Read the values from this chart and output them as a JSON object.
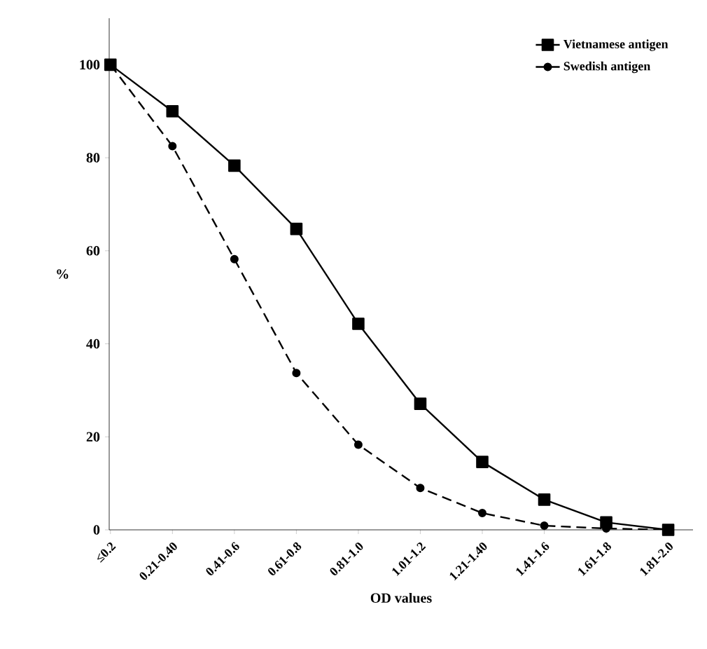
{
  "chart_data": {
    "type": "line",
    "xlabel": "OD values",
    "ylabel": "%",
    "categories": [
      "≤0.2",
      "0.21-0.40",
      "0.41-0.6",
      "0.61-0.8",
      "0.81-1.0",
      "1.01-1.2",
      "1.21-1.40",
      "1.41-1.6",
      "1.61-1.8",
      "1.81-2.0"
    ],
    "series": [
      {
        "name": "Vietnamese antigen",
        "color": "#000000",
        "marker": "square",
        "line_style": "solid",
        "values": [
          100,
          90,
          78.3,
          64.7,
          44.3,
          27.1,
          14.6,
          6.5,
          1.6,
          0
        ]
      },
      {
        "name": "Swedish antigen",
        "color": "#000000",
        "marker": "circle",
        "line_style": "dashed",
        "values": [
          100,
          82.5,
          58.2,
          33.7,
          18.3,
          9,
          3.6,
          0.9,
          0.3,
          0
        ]
      }
    ],
    "ylim": [
      0,
      110
    ],
    "yticks": [
      0,
      20,
      40,
      60,
      80,
      100
    ],
    "legend": "top right",
    "grid": false
  }
}
